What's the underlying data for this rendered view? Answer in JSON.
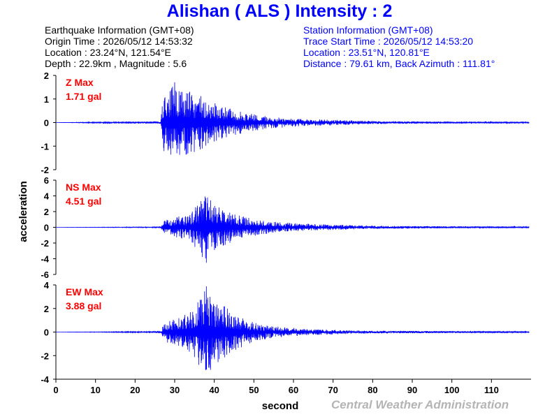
{
  "title": "Alishan ( ALS ) Intensity : 2",
  "earthquake_info": {
    "header": "Earthquake Information  (GMT+08)",
    "origin_time": "Origin Time : 2026/05/12 14:53:32",
    "location": "Location : 23.24°N, 121.54°E",
    "depth_magnitude": "Depth : 22.9km , Magnitude : 5.6"
  },
  "station_info": {
    "header": "Station Information  (GMT+08)",
    "trace_start": "Trace Start Time : 2026/05/12 14:53:20",
    "location": "Location : 23.51°N, 120.81°E",
    "distance": "Distance : 79.61 km, Back Azimuth : 111.81°"
  },
  "footer": "Central Weather Administration",
  "colors": {
    "title": "#0000ff",
    "trace": "#0000ff",
    "max_label": "#ff0000",
    "footer": "#b4b4b4",
    "axes": "#000000"
  },
  "chart_data": {
    "type": "line",
    "xlabel": "second",
    "ylabel": "acceleration",
    "xlim": [
      0,
      120
    ],
    "xticks": [
      0,
      10,
      20,
      30,
      40,
      50,
      60,
      70,
      80,
      90,
      100,
      110
    ],
    "panels": [
      {
        "name": "Z",
        "max_label": "Z Max",
        "max_value": "1.71 gal",
        "ylim": [
          -2,
          2
        ],
        "yticks": [
          2,
          1,
          0,
          -1,
          -2
        ],
        "x": [
          0,
          26.5,
          27,
          28,
          29,
          30,
          31,
          32,
          33,
          34,
          35,
          36,
          37,
          38,
          40,
          42,
          44,
          46,
          48,
          50,
          52,
          55,
          58,
          62,
          66,
          70,
          75,
          80,
          90,
          100,
          110,
          120
        ],
        "envelope": [
          0,
          0.05,
          1.2,
          1.3,
          1.5,
          1.71,
          1.55,
          1.45,
          1.35,
          1.3,
          1.25,
          1.2,
          1.1,
          1.0,
          0.85,
          0.7,
          0.6,
          0.5,
          0.42,
          0.35,
          0.3,
          0.25,
          0.2,
          0.16,
          0.14,
          0.12,
          0.09,
          0.07,
          0.05,
          0.04,
          0.03,
          0.03
        ]
      },
      {
        "name": "NS",
        "max_label": "NS Max",
        "max_value": "4.51 gal",
        "ylim": [
          -6,
          6
        ],
        "yticks": [
          6,
          4,
          2,
          0,
          -2,
          -4,
          -6
        ],
        "x": [
          0,
          26.5,
          27,
          28,
          29,
          30,
          31,
          32,
          33,
          34,
          35,
          36,
          37,
          38,
          39,
          40,
          42,
          44,
          46,
          48,
          50,
          52,
          55,
          58,
          62,
          66,
          70,
          75,
          80,
          90,
          100,
          110,
          120
        ],
        "envelope": [
          0,
          0.05,
          0.8,
          1.0,
          1.0,
          1.2,
          1.5,
          1.5,
          1.5,
          2.0,
          2.6,
          3.0,
          3.8,
          4.51,
          3.6,
          3.1,
          2.5,
          2.1,
          1.6,
          1.3,
          1.1,
          0.9,
          0.75,
          0.6,
          0.48,
          0.4,
          0.34,
          0.27,
          0.22,
          0.16,
          0.12,
          0.1,
          0.09
        ]
      },
      {
        "name": "EW",
        "max_label": "EW Max",
        "max_value": "3.88 gal",
        "ylim": [
          -4,
          4
        ],
        "yticks": [
          4,
          2,
          0,
          -2,
          -4
        ],
        "x": [
          0,
          26.5,
          27,
          28,
          29,
          30,
          31,
          32,
          33,
          34,
          35,
          36,
          37,
          38,
          39,
          40,
          42,
          44,
          46,
          48,
          50,
          52,
          55,
          58,
          62,
          66,
          70,
          75,
          80,
          90,
          100,
          110,
          120
        ],
        "envelope": [
          0,
          0.05,
          0.5,
          0.9,
          1.0,
          1.1,
          1.2,
          1.3,
          1.6,
          2.0,
          2.4,
          2.8,
          3.2,
          3.88,
          3.3,
          2.9,
          2.3,
          1.9,
          1.5,
          1.1,
          0.85,
          0.7,
          0.5,
          0.4,
          0.3,
          0.25,
          0.2,
          0.15,
          0.12,
          0.1,
          0.08,
          0.07,
          0.06
        ]
      }
    ]
  }
}
